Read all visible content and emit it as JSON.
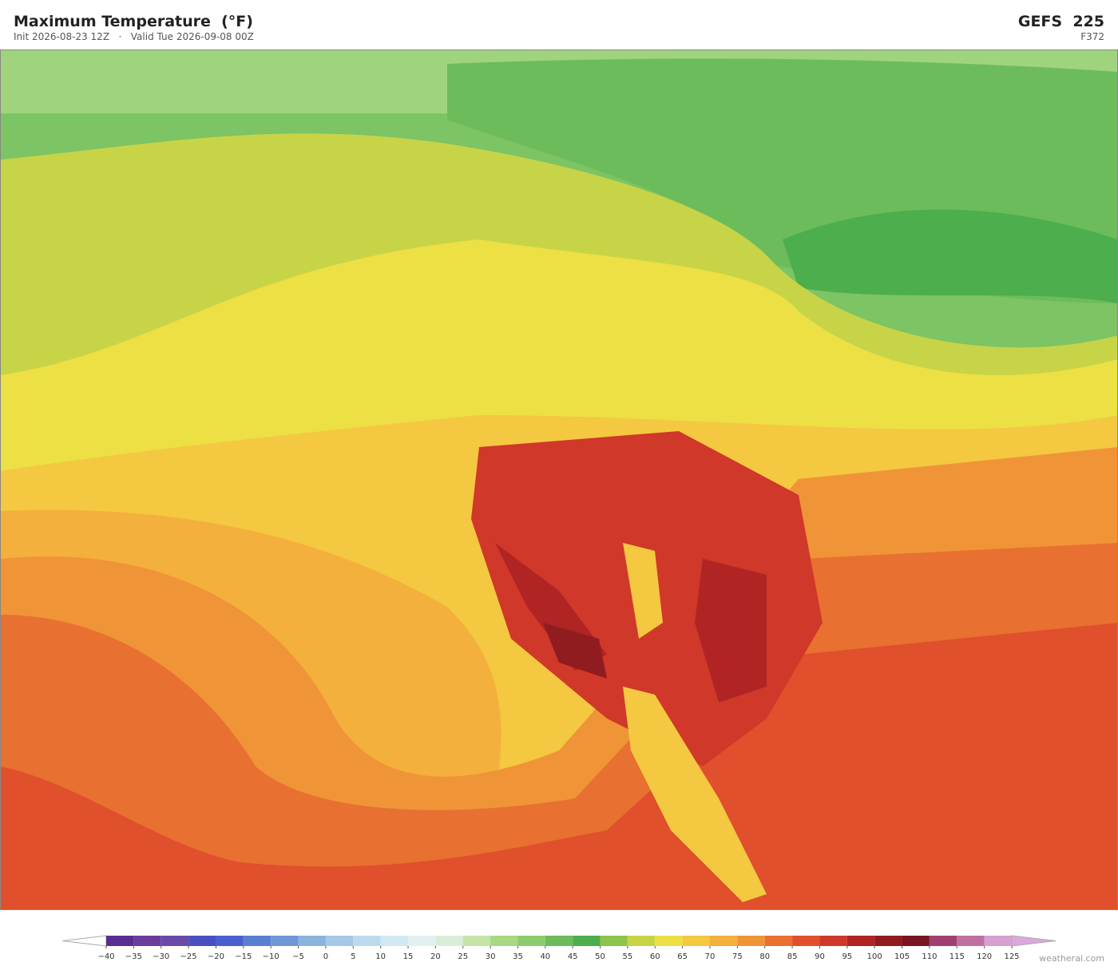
{
  "header": {
    "title": "Maximum Temperature  (°F)",
    "init": "Init 2026-08-23 12Z",
    "separator": "·",
    "valid": "Valid Tue 2026-09-08 00Z",
    "model": "GEFS  225",
    "forecast_hour": "F372"
  },
  "colorbar": {
    "ticks": [
      {
        "value": -40,
        "label": "−40"
      },
      {
        "value": -35,
        "label": "−35"
      },
      {
        "value": -30,
        "label": "−30"
      },
      {
        "value": -25,
        "label": "−25"
      },
      {
        "value": -20,
        "label": "−20"
      },
      {
        "value": -15,
        "label": "−15"
      },
      {
        "value": -10,
        "label": "−10"
      },
      {
        "value": -5,
        "label": "−5"
      },
      0,
      5,
      10,
      15,
      20,
      25,
      30,
      35,
      40,
      45,
      50,
      55,
      60,
      65,
      70,
      75,
      80,
      85,
      90,
      95,
      100,
      105,
      110,
      115,
      120,
      125
    ],
    "colors": [
      "#5a2d91",
      "#6a3d9a",
      "#6a4aa8",
      "#4a4fc0",
      "#4a5fcf",
      "#5b7fd0",
      "#6f97d6",
      "#8ab4de",
      "#a4c8e6",
      "#bcdcee",
      "#d2e8f2",
      "#e2f0f0",
      "#d8eed8",
      "#c4e4a8",
      "#a8d880",
      "#8ccc6c",
      "#6cbc5c",
      "#4cae4c",
      "#8cc44c",
      "#c8d448",
      "#ece044",
      "#f4c840",
      "#f4b03c",
      "#f09438",
      "#e87030",
      "#e0502c",
      "#d0382a",
      "#b02424",
      "#901c20",
      "#7a1420",
      "#a04070",
      "#c070a0",
      "#d8a0d0"
    ],
    "under_color": "#ffffff",
    "over_color": "#dca8dc"
  },
  "footer": {
    "credit": "weatherai.com"
  }
}
